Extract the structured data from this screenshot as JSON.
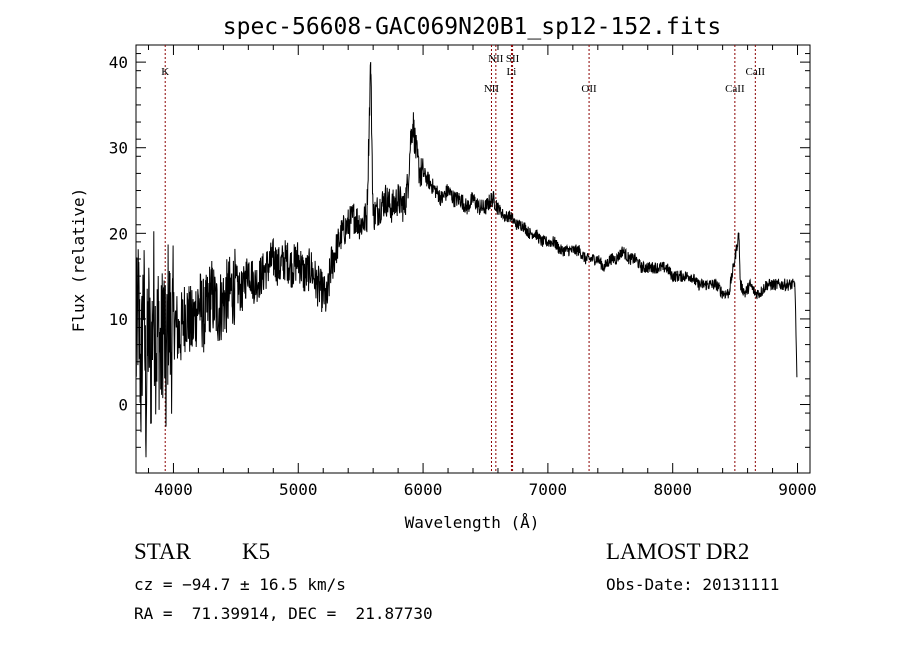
{
  "chart_data": {
    "type": "line",
    "title": "spec-56608-GAC069N20B1_sp12-152.fits",
    "xlabel": "Wavelength (Å)",
    "ylabel": "Flux (relative)",
    "xlim": [
      3700,
      9100
    ],
    "ylim": [
      -8,
      42
    ],
    "xticks": [
      4000,
      5000,
      6000,
      7000,
      8000,
      9000
    ],
    "yticks": [
      0,
      10,
      20,
      30,
      40
    ],
    "grid": false,
    "series": [
      {
        "x": [
          3700,
          3720,
          3740,
          3760,
          3780,
          3800,
          3820,
          3840,
          3860,
          3880,
          3900,
          3920,
          3940,
          3960,
          3980,
          4000,
          4050,
          4100,
          4150,
          4200,
          4250,
          4300,
          4350,
          4400,
          4450,
          4500,
          4550,
          4600,
          4650,
          4700,
          4750,
          4800,
          4850,
          4900,
          4950,
          5000,
          5050,
          5100,
          5150,
          5200,
          5230,
          5260,
          5300,
          5350,
          5400,
          5450,
          5500,
          5550,
          5580,
          5600,
          5650,
          5700,
          5750,
          5800,
          5850,
          5880,
          5900,
          5920,
          5940,
          5960,
          5980,
          6000,
          6050,
          6100,
          6150,
          6200,
          6250,
          6300,
          6350,
          6400,
          6450,
          6500,
          6550,
          6563,
          6600,
          6650,
          6700,
          6750,
          6800,
          6850,
          6900,
          6950,
          7000,
          7050,
          7100,
          7150,
          7200,
          7250,
          7300,
          7350,
          7400,
          7450,
          7500,
          7550,
          7600,
          7650,
          7700,
          7750,
          7800,
          7850,
          7900,
          7950,
          8000,
          8050,
          8100,
          8150,
          8200,
          8250,
          8300,
          8350,
          8400,
          8450,
          8498,
          8530,
          8542,
          8580,
          8620,
          8662,
          8700,
          8750,
          8800,
          8850,
          8900,
          8950,
          8980,
          8995
        ],
        "y": [
          6,
          12,
          2,
          14,
          0,
          10,
          4,
          13,
          7,
          9,
          5,
          11,
          3,
          12,
          7,
          10,
          8,
          11,
          9,
          12,
          10,
          13,
          11,
          12,
          13,
          14,
          13,
          16,
          14,
          15,
          16,
          17,
          16,
          17,
          16,
          17,
          15,
          16,
          14,
          13,
          12,
          16,
          18,
          20,
          21,
          22,
          21,
          22,
          40,
          22,
          23,
          24,
          23,
          24,
          23,
          26,
          31,
          33,
          30,
          28,
          27,
          27,
          26,
          25,
          24,
          25,
          24,
          24,
          23,
          24,
          23,
          23,
          24,
          24,
          23,
          22,
          22,
          21,
          21,
          20,
          20,
          19,
          19,
          19,
          18,
          18,
          18,
          18,
          17,
          17,
          17,
          16,
          17,
          17,
          18,
          17,
          17,
          16,
          16,
          16,
          16,
          16,
          15,
          15,
          15,
          15,
          14,
          14,
          14,
          14,
          13,
          13,
          17,
          20,
          14,
          13,
          14,
          13,
          13,
          14,
          14,
          14,
          14,
          14,
          14,
          3
        ]
      }
    ],
    "lines": [
      {
        "name": "K",
        "x": 3934
      },
      {
        "name": "NII",
        "x": 6548
      },
      {
        "name": "NII",
        "x": 6583
      },
      {
        "name": "Li",
        "x": 6708
      },
      {
        "name": "SII",
        "x": 6717
      },
      {
        "name": "OII",
        "x": 7330
      },
      {
        "name": "CaII",
        "x": 8498
      },
      {
        "name": "CaII",
        "x": 8662
      }
    ],
    "line_color": "#8b0000"
  },
  "info": {
    "class": "STAR",
    "subclass": "K5",
    "survey": "LAMOST DR2",
    "cz": "cz = −94.7 ± 16.5 km/s",
    "obs_date": "Obs-Date: 20131111",
    "radec": "RA =  71.39914, DEC =  21.87730"
  }
}
